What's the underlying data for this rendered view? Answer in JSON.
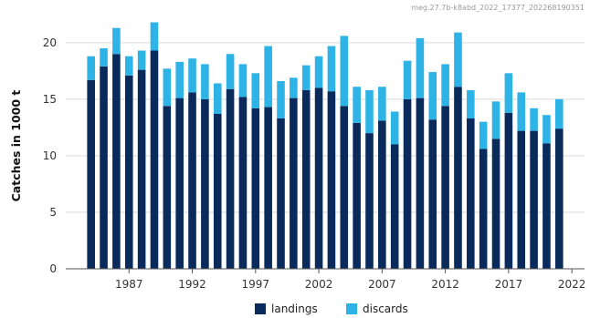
{
  "colors": {
    "landings": "#0a2a5c",
    "discards": "#2eb3e6",
    "grid": "#d9d9d9",
    "axis": "#555555"
  },
  "chart_data": {
    "type": "bar",
    "stacked": true,
    "source_note": "meg.27.7b-k8abd_2022_17377_202268190351",
    "ylabel": "Catches in 1000 t",
    "xlabel": "",
    "ylim": [
      0,
      22
    ],
    "yticks": [
      0,
      5,
      10,
      15,
      20
    ],
    "xticks": [
      1987,
      1992,
      1997,
      2002,
      2007,
      2012,
      2017,
      2022
    ],
    "x": [
      1984,
      1985,
      1986,
      1987,
      1988,
      1989,
      1990,
      1991,
      1992,
      1993,
      1994,
      1995,
      1996,
      1997,
      1998,
      1999,
      2000,
      2001,
      2002,
      2003,
      2004,
      2005,
      2006,
      2007,
      2008,
      2009,
      2010,
      2011,
      2012,
      2013,
      2014,
      2015,
      2016,
      2017,
      2018,
      2019,
      2020,
      2021
    ],
    "series": [
      {
        "name": "landings",
        "values": [
          16.7,
          17.9,
          19.0,
          17.1,
          17.6,
          19.3,
          14.4,
          15.1,
          15.6,
          15.0,
          13.7,
          15.9,
          15.2,
          14.2,
          14.3,
          13.3,
          15.1,
          15.8,
          16.0,
          15.7,
          14.4,
          12.9,
          12.0,
          13.1,
          11.0,
          15.0,
          15.1,
          13.2,
          14.4,
          16.1,
          13.3,
          10.6,
          11.5,
          13.8,
          12.2,
          12.2,
          11.1,
          12.4
        ]
      },
      {
        "name": "discards",
        "values": [
          2.1,
          1.6,
          2.3,
          1.7,
          1.7,
          2.5,
          3.3,
          3.2,
          3.0,
          3.1,
          2.7,
          3.1,
          2.9,
          3.1,
          5.4,
          3.3,
          1.8,
          2.2,
          2.8,
          4.0,
          6.2,
          3.2,
          3.8,
          3.0,
          2.9,
          3.4,
          5.3,
          4.2,
          3.7,
          4.8,
          2.5,
          2.4,
          3.3,
          3.5,
          3.4,
          2.0,
          2.5,
          2.6
        ]
      }
    ],
    "legend": [
      "landings",
      "discards"
    ],
    "legend_position": "bottom-center",
    "grid": "horizontal"
  }
}
